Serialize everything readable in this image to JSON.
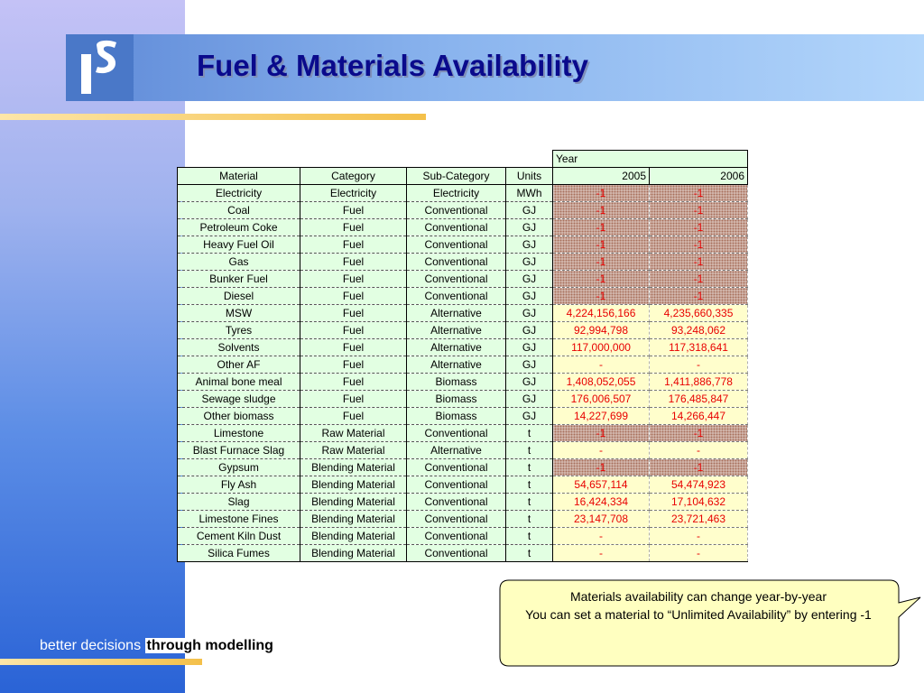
{
  "slide": {
    "title": "Fuel & Materials Availability",
    "tagline_part1": "better decisions",
    "tagline_part2": "through modelling",
    "callout_line1": "Materials availability can change year-by-year",
    "callout_line2": "You can set a material to “Unlimited Availability” by entering -1"
  },
  "table": {
    "year_label": "Year",
    "headers": [
      "Material",
      "Category",
      "Sub-Category",
      "Units"
    ],
    "years": [
      "2005",
      "2006"
    ],
    "rows": [
      {
        "material": "Electricity",
        "category": "Electricity",
        "subcategory": "Electricity",
        "units": "MWh",
        "v2005": "-1",
        "v2006": "-1",
        "hatched": true
      },
      {
        "material": "Coal",
        "category": "Fuel",
        "subcategory": "Conventional",
        "units": "GJ",
        "v2005": "-1",
        "v2006": "-1",
        "hatched": true
      },
      {
        "material": "Petroleum Coke",
        "category": "Fuel",
        "subcategory": "Conventional",
        "units": "GJ",
        "v2005": "-1",
        "v2006": "-1",
        "hatched": true
      },
      {
        "material": "Heavy Fuel Oil",
        "category": "Fuel",
        "subcategory": "Conventional",
        "units": "GJ",
        "v2005": "-1",
        "v2006": "-1",
        "hatched": true
      },
      {
        "material": "Gas",
        "category": "Fuel",
        "subcategory": "Conventional",
        "units": "GJ",
        "v2005": "-1",
        "v2006": "-1",
        "hatched": true
      },
      {
        "material": "Bunker Fuel",
        "category": "Fuel",
        "subcategory": "Conventional",
        "units": "GJ",
        "v2005": "-1",
        "v2006": "-1",
        "hatched": true
      },
      {
        "material": "Diesel",
        "category": "Fuel",
        "subcategory": "Conventional",
        "units": "GJ",
        "v2005": "-1",
        "v2006": "-1",
        "hatched": true
      },
      {
        "material": "MSW",
        "category": "Fuel",
        "subcategory": "Alternative",
        "units": "GJ",
        "v2005": "4,224,156,166",
        "v2006": "4,235,660,335",
        "hatched": false
      },
      {
        "material": "Tyres",
        "category": "Fuel",
        "subcategory": "Alternative",
        "units": "GJ",
        "v2005": "92,994,798",
        "v2006": "93,248,062",
        "hatched": false
      },
      {
        "material": "Solvents",
        "category": "Fuel",
        "subcategory": "Alternative",
        "units": "GJ",
        "v2005": "117,000,000",
        "v2006": "117,318,641",
        "hatched": false
      },
      {
        "material": "Other AF",
        "category": "Fuel",
        "subcategory": "Alternative",
        "units": "GJ",
        "v2005": "-",
        "v2006": "-",
        "hatched": false
      },
      {
        "material": "Animal bone meal",
        "category": "Fuel",
        "subcategory": "Biomass",
        "units": "GJ",
        "v2005": "1,408,052,055",
        "v2006": "1,411,886,778",
        "hatched": false
      },
      {
        "material": "Sewage sludge",
        "category": "Fuel",
        "subcategory": "Biomass",
        "units": "GJ",
        "v2005": "176,006,507",
        "v2006": "176,485,847",
        "hatched": false
      },
      {
        "material": "Other biomass",
        "category": "Fuel",
        "subcategory": "Biomass",
        "units": "GJ",
        "v2005": "14,227,699",
        "v2006": "14,266,447",
        "hatched": false
      },
      {
        "material": "Limestone",
        "category": "Raw Material",
        "subcategory": "Conventional",
        "units": "t",
        "v2005": "-1",
        "v2006": "-1",
        "hatched": true
      },
      {
        "material": "Blast Furnace Slag",
        "category": "Raw Material",
        "subcategory": "Alternative",
        "units": "t",
        "v2005": "-",
        "v2006": "-",
        "hatched": false
      },
      {
        "material": "Gypsum",
        "category": "Blending Material",
        "subcategory": "Conventional",
        "units": "t",
        "v2005": "-1",
        "v2006": "-1",
        "hatched": true
      },
      {
        "material": "Fly Ash",
        "category": "Blending Material",
        "subcategory": "Conventional",
        "units": "t",
        "v2005": "54,657,114",
        "v2006": "54,474,923",
        "hatched": false
      },
      {
        "material": "Slag",
        "category": "Blending Material",
        "subcategory": "Conventional",
        "units": "t",
        "v2005": "16,424,334",
        "v2006": "17,104,632",
        "hatched": false
      },
      {
        "material": "Limestone Fines",
        "category": "Blending Material",
        "subcategory": "Conventional",
        "units": "t",
        "v2005": "23,147,708",
        "v2006": "23,721,463",
        "hatched": false
      },
      {
        "material": "Cement Kiln Dust",
        "category": "Blending Material",
        "subcategory": "Conventional",
        "units": "t",
        "v2005": "-",
        "v2006": "-",
        "hatched": false
      },
      {
        "material": "Silica Fumes",
        "category": "Blending Material",
        "subcategory": "Conventional",
        "units": "t",
        "v2005": "-",
        "v2006": "-",
        "hatched": false
      }
    ]
  },
  "colors": {
    "title": "#0a0a8c",
    "value_text": "#e80000",
    "header_fill": "#e2ffe2",
    "value_fill": "#fffecc",
    "hatch_fill": "#a76f5a",
    "callout_fill": "#ffffc0",
    "accent": "#f4c04a"
  },
  "icons": {
    "logo": "company-logo-icon"
  }
}
